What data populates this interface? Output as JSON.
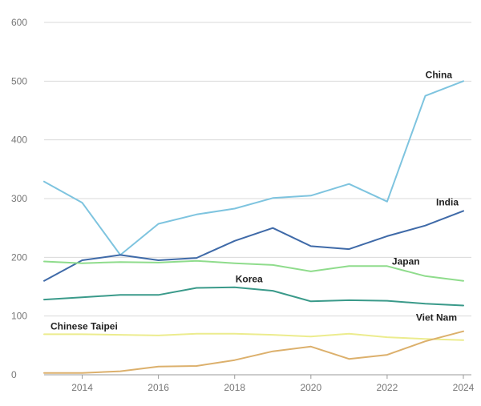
{
  "chart_data": {
    "type": "line",
    "title": "",
    "xlabel": "",
    "ylabel": "",
    "x": [
      2013,
      2014,
      2015,
      2016,
      2017,
      2018,
      2019,
      2020,
      2021,
      2022,
      2023,
      2024
    ],
    "xlim": [
      2013,
      2024
    ],
    "ylim": [
      0,
      600
    ],
    "x_ticks": [
      "2014",
      "2016",
      "2018",
      "2020",
      "2022",
      "2024"
    ],
    "y_ticks": [
      "0",
      "100",
      "200",
      "300",
      "400",
      "500",
      "600"
    ],
    "grid": "horizontal",
    "legend": "inline labels",
    "series": [
      {
        "name": "China",
        "color": "#7ec4df",
        "values": [
          329,
          293,
          204,
          257,
          273,
          283,
          301,
          305,
          325,
          295,
          475,
          500
        ]
      },
      {
        "name": "India",
        "color": "#3f6aa8",
        "values": [
          160,
          195,
          204,
          195,
          199,
          228,
          250,
          219,
          214,
          236,
          254,
          279
        ]
      },
      {
        "name": "Japan",
        "color": "#8fdc8c",
        "values": [
          193,
          190,
          192,
          191,
          194,
          190,
          187,
          176,
          185,
          185,
          168,
          160
        ]
      },
      {
        "name": "Korea",
        "color": "#3a9a8a",
        "values": [
          128,
          132,
          136,
          136,
          148,
          149,
          143,
          125,
          127,
          126,
          121,
          118
        ]
      },
      {
        "name": "Chinese Taipei",
        "color": "#ecec8e",
        "values": [
          69,
          69,
          68,
          67,
          70,
          70,
          68,
          65,
          70,
          64,
          61,
          59
        ]
      },
      {
        "name": "Viet Nam",
        "color": "#dcb06c",
        "values": [
          3,
          3,
          6,
          14,
          15,
          25,
          40,
          48,
          27,
          34,
          57,
          74
        ]
      }
    ]
  }
}
